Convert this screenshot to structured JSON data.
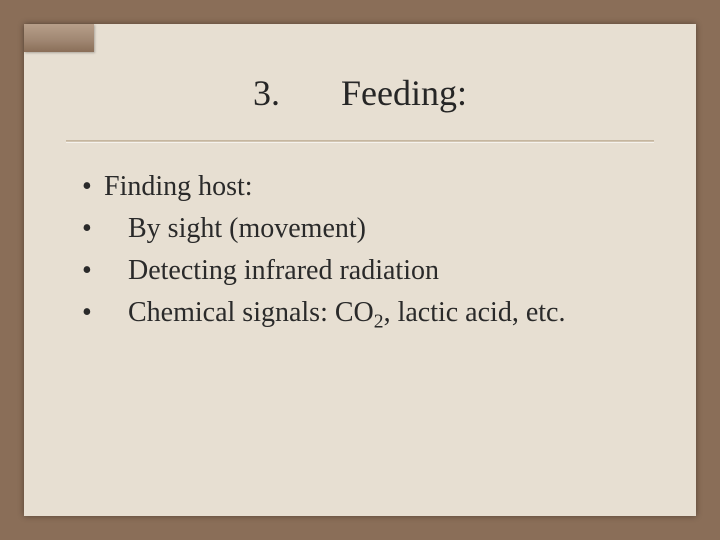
{
  "colors": {
    "outer_background": "#8a6e58",
    "slide_background": "#e7dfd2",
    "text_color": "#2a2a2a",
    "rule_color": "#bfae96"
  },
  "typography": {
    "family": "Times New Roman",
    "title_fontsize_pt": 27,
    "body_fontsize_pt": 21
  },
  "title": {
    "number": "3.",
    "text": "Feeding:"
  },
  "bullets": [
    {
      "indent": 0,
      "text": "Finding host:"
    },
    {
      "indent": 1,
      "text": "By sight (movement)"
    },
    {
      "indent": 1,
      "text": "Detecting infrared radiation"
    },
    {
      "indent": 1,
      "text_prefix": "Chemical signals: CO",
      "subscript": "2",
      "text_suffix": ", lactic acid, etc."
    }
  ]
}
